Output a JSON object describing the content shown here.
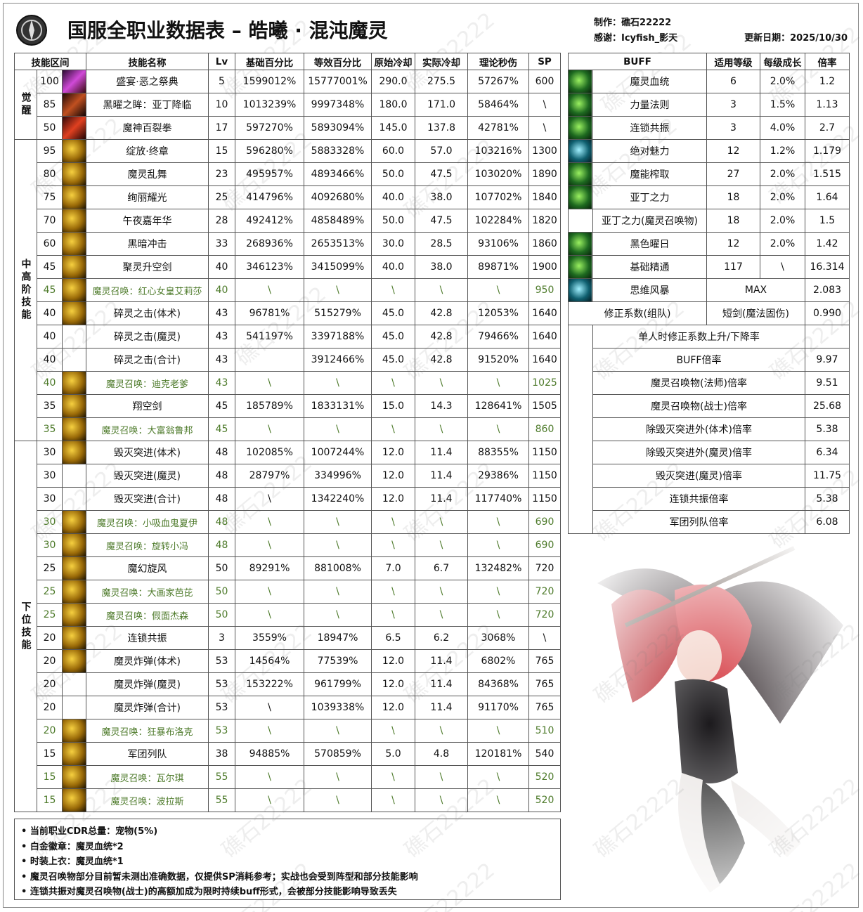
{
  "header": {
    "title": "国服全职业数据表 – 皓曦 · 混沌魔灵",
    "author": "制作：礁石22222",
    "thanks": "感谢：Icyfish_影天",
    "updated": "更新日期：2025/10/30"
  },
  "watermark": "礁石22222",
  "skill_table": {
    "headers": [
      "技能区间",
      "技能名称",
      "Lv",
      "基础百分比",
      "等效百分比",
      "原始冷却",
      "实际冷却",
      "理论秒伤",
      "SP"
    ],
    "highlight_color": "#4d7a2a",
    "groups": [
      {
        "label": "觉醒",
        "rows": [
          {
            "cells": [
              "100",
              "盛宴·恶之祭典",
              "5",
              "1599012%",
              "15777001%",
              "290.0",
              "275.5",
              "57267%",
              "600"
            ]
          },
          {
            "cells": [
              "85",
              "黑曜之眸：亚丁降临",
              "10",
              "1013239%",
              "9997348%",
              "180.0",
              "171.0",
              "58464%",
              "\\"
            ]
          },
          {
            "cells": [
              "50",
              "魔神百裂拳",
              "17",
              "597270%",
              "5893094%",
              "145.0",
              "137.8",
              "42781%",
              "\\"
            ]
          }
        ]
      },
      {
        "label": "中高阶技能",
        "rows": [
          {
            "cells": [
              "95",
              "绽放·终章",
              "15",
              "596280%",
              "5883328%",
              "60.0",
              "57.0",
              "103216%",
              "1300"
            ]
          },
          {
            "cells": [
              "80",
              "魔灵乱舞",
              "23",
              "495957%",
              "4893466%",
              "50.0",
              "47.5",
              "103020%",
              "1890"
            ]
          },
          {
            "cells": [
              "75",
              "绚丽耀光",
              "25",
              "414796%",
              "4092680%",
              "40.0",
              "38.0",
              "107702%",
              "1840"
            ]
          },
          {
            "cells": [
              "70",
              "午夜嘉年华",
              "28",
              "492412%",
              "4858489%",
              "50.0",
              "47.5",
              "102284%",
              "1820"
            ]
          },
          {
            "cells": [
              "60",
              "黑暗冲击",
              "33",
              "268936%",
              "2653513%",
              "30.0",
              "28.5",
              "93106%",
              "1860"
            ]
          },
          {
            "cells": [
              "45",
              "聚灵升空剑",
              "40",
              "346123%",
              "3415099%",
              "40.0",
              "38.0",
              "89871%",
              "1900"
            ]
          },
          {
            "cells": [
              "45",
              "魔灵召唤：红心女皇艾莉莎",
              "40",
              "\\",
              "\\",
              "\\",
              "\\",
              "\\",
              "950"
            ],
            "highlight": true
          },
          {
            "cells": [
              "40",
              "碎灵之击(体术)",
              "43",
              "96781%",
              "515279%",
              "45.0",
              "42.8",
              "12053%",
              "1640"
            ]
          },
          {
            "cells": [
              "40",
              "碎灵之击(魔灵)",
              "43",
              "541197%",
              "3397188%",
              "45.0",
              "42.8",
              "79466%",
              "1640"
            ]
          },
          {
            "cells": [
              "40",
              "碎灵之击(合计)",
              "43",
              null,
              "3912466%",
              "45.0",
              "42.8",
              "91520%",
              "1640"
            ]
          },
          {
            "cells": [
              "40",
              "魔灵召唤：迪克老爹",
              "43",
              "\\",
              "\\",
              "\\",
              "\\",
              "\\",
              "1025"
            ],
            "highlight": true
          },
          {
            "cells": [
              "35",
              "翔空剑",
              "45",
              "185789%",
              "1833131%",
              "15.0",
              "14.3",
              "128641%",
              "1505"
            ]
          },
          {
            "cells": [
              "35",
              "魔灵召唤：大富翁鲁邦",
              "45",
              "\\",
              "\\",
              "\\",
              "\\",
              "\\",
              "860"
            ],
            "highlight": true
          }
        ]
      },
      {
        "label": "下位技能",
        "rows": [
          {
            "cells": [
              "30",
              "毁灭突进(体术)",
              "48",
              "102085%",
              "1007244%",
              "12.0",
              "11.4",
              "88355%",
              "1150"
            ]
          },
          {
            "cells": [
              "30",
              "毁灭突进(魔灵)",
              "48",
              "28797%",
              "334996%",
              "12.0",
              "11.4",
              "29386%",
              "1150"
            ]
          },
          {
            "cells": [
              "30",
              "毁灭突进(合计)",
              "48",
              "\\",
              "1342240%",
              "12.0",
              "11.4",
              "117740%",
              "1150"
            ]
          },
          {
            "cells": [
              "30",
              "魔灵召唤：小吸血鬼夏伊",
              "48",
              "\\",
              "\\",
              "\\",
              "\\",
              "\\",
              "690"
            ],
            "highlight": true
          },
          {
            "cells": [
              "30",
              "魔灵召唤：旋转小冯",
              "48",
              "\\",
              "\\",
              "\\",
              "\\",
              "\\",
              "690"
            ],
            "highlight": true
          },
          {
            "cells": [
              "25",
              "魔幻旋风",
              "50",
              "89291%",
              "881008%",
              "7.0",
              "6.7",
              "132482%",
              "720"
            ]
          },
          {
            "cells": [
              "25",
              "魔灵召唤：大画家芭芘",
              "50",
              "\\",
              "\\",
              "\\",
              "\\",
              "\\",
              "720"
            ],
            "highlight": true
          },
          {
            "cells": [
              "25",
              "魔灵召唤：假面杰森",
              "50",
              "\\",
              "\\",
              "\\",
              "\\",
              "\\",
              "720"
            ],
            "highlight": true
          },
          {
            "cells": [
              "20",
              "连锁共振",
              "3",
              "3559%",
              "18947%",
              "6.5",
              "6.2",
              "3068%",
              "\\"
            ]
          },
          {
            "cells": [
              "20",
              "魔灵炸弹(体术)",
              "53",
              "14564%",
              "77539%",
              "12.0",
              "11.4",
              "6802%",
              "765"
            ]
          },
          {
            "cells": [
              "20",
              "魔灵炸弹(魔灵)",
              "53",
              "153222%",
              "961799%",
              "12.0",
              "11.4",
              "84368%",
              "765"
            ]
          },
          {
            "cells": [
              "20",
              "魔灵炸弹(合计)",
              "53",
              "\\",
              "1039338%",
              "12.0",
              "11.4",
              "91170%",
              "765"
            ]
          },
          {
            "cells": [
              "20",
              "魔灵召唤：狂暴布洛克",
              "53",
              "\\",
              "\\",
              "\\",
              "\\",
              "\\",
              "510"
            ],
            "highlight": true
          },
          {
            "cells": [
              "15",
              "军团列队",
              "38",
              "94885%",
              "570859%",
              "5.0",
              "4.8",
              "120181%",
              "540"
            ]
          },
          {
            "cells": [
              "15",
              "魔灵召唤：瓦尔琪",
              "55",
              "\\",
              "\\",
              "\\",
              "\\",
              "\\",
              "520"
            ],
            "highlight": true
          },
          {
            "cells": [
              "15",
              "魔灵召唤：波拉斯",
              "55",
              "\\",
              "\\",
              "\\",
              "\\",
              "\\",
              "520"
            ],
            "highlight": true
          }
        ]
      }
    ]
  },
  "buff_table": {
    "headers": [
      "BUFF",
      "适用等级",
      "每级成长",
      "倍率"
    ],
    "buffs": [
      [
        "魔灵血统",
        "6",
        "2.0%",
        "1.2"
      ],
      [
        "力量法则",
        "3",
        "1.5%",
        "1.13"
      ],
      [
        "连锁共振",
        "3",
        "4.0%",
        "2.7"
      ],
      [
        "绝对魅力",
        "12",
        "1.2%",
        "1.179"
      ],
      [
        "魔能榨取",
        "27",
        "2.0%",
        "1.515"
      ],
      [
        "亚丁之力",
        "18",
        "2.0%",
        "1.64"
      ],
      [
        "亚丁之力(魔灵召唤物)",
        "18",
        "2.0%",
        "1.5"
      ],
      [
        "黑色曜日",
        "12",
        "2.0%",
        "1.42"
      ],
      [
        "基础精通",
        "117",
        "\\",
        "16.314"
      ],
      [
        "思维风暴",
        "MAX",
        "2.083"
      ]
    ],
    "correction": [
      "修正系数(组队)",
      "短剑(魔法固伤)",
      "0.990"
    ],
    "ratios": [
      [
        "单人时修正系数上升/下降率"
      ],
      [
        "BUFF倍率",
        "9.97"
      ],
      [
        "魔灵召唤物(法师)倍率",
        "9.51"
      ],
      [
        "魔灵召唤物(战士)倍率",
        "25.68"
      ],
      [
        "除毁灭突进外(体术)倍率",
        "5.38"
      ],
      [
        "除毁灭突进外(魔灵)倍率",
        "6.34"
      ],
      [
        "毁灭突进(魔灵)倍率",
        "11.75"
      ],
      [
        "连锁共振倍率",
        "5.38"
      ],
      [
        "军团列队倍率",
        "6.08"
      ]
    ]
  },
  "notes": [
    "• 当前职业CDR总量：宠物(5%)",
    "• 白金徽章：魔灵血统*2",
    "• 时装上衣：魔灵血统*1",
    "• 魔灵召唤物部分目前暂未测出准确数据，仅提供SP消耗参考；实战也会受到阵型和部分技能影响",
    "• 连锁共振对魔灵召唤物(战士)的高额加成为限时持续buff形式，会被部分技能影响导致丢失"
  ]
}
